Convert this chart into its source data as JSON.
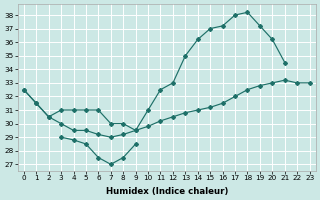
{
  "bg_color": "#cce8e5",
  "grid_color": "#b0d8d4",
  "line_color": "#1e7068",
  "xlabel": "Humidex (Indice chaleur)",
  "xticks": [
    0,
    1,
    2,
    3,
    4,
    5,
    6,
    7,
    8,
    9,
    10,
    11,
    12,
    13,
    14,
    15,
    16,
    17,
    18,
    19,
    20,
    21,
    22,
    23
  ],
  "yticks": [
    27,
    28,
    29,
    30,
    31,
    32,
    33,
    34,
    35,
    36,
    37,
    38
  ],
  "xlim": [
    -0.5,
    23.5
  ],
  "ylim": [
    26.5,
    38.8
  ],
  "line1_x": [
    0,
    1,
    2,
    3,
    4,
    5,
    6,
    7,
    8,
    9,
    10,
    11,
    12,
    13,
    14,
    15,
    16,
    17,
    18,
    19,
    20,
    21
  ],
  "line1_y": [
    32.5,
    31.5,
    30.5,
    31.0,
    31.0,
    31.0,
    31.0,
    30.0,
    30.0,
    29.5,
    31.0,
    32.5,
    33.0,
    35.0,
    36.2,
    37.0,
    37.2,
    38.0,
    38.2,
    37.2,
    36.2,
    34.5
  ],
  "line2_x": [
    3,
    4,
    5,
    6,
    7,
    8,
    9
  ],
  "line2_y": [
    29.0,
    28.8,
    28.5,
    27.5,
    27.0,
    27.5,
    28.5
  ],
  "line3_x": [
    0,
    1,
    2,
    3,
    4,
    5,
    6,
    7,
    8,
    9,
    10,
    11,
    12,
    13,
    14,
    15,
    16,
    17,
    18,
    19,
    20,
    21,
    22,
    23
  ],
  "line3_y": [
    32.5,
    31.5,
    30.5,
    30.0,
    29.5,
    29.5,
    29.2,
    29.0,
    29.2,
    29.5,
    29.8,
    30.2,
    30.5,
    30.8,
    31.0,
    31.2,
    31.5,
    32.0,
    32.5,
    32.8,
    33.0,
    33.2,
    33.0,
    33.0
  ],
  "xlabel_fontsize": 6.2,
  "tick_fontsize": 5.2
}
